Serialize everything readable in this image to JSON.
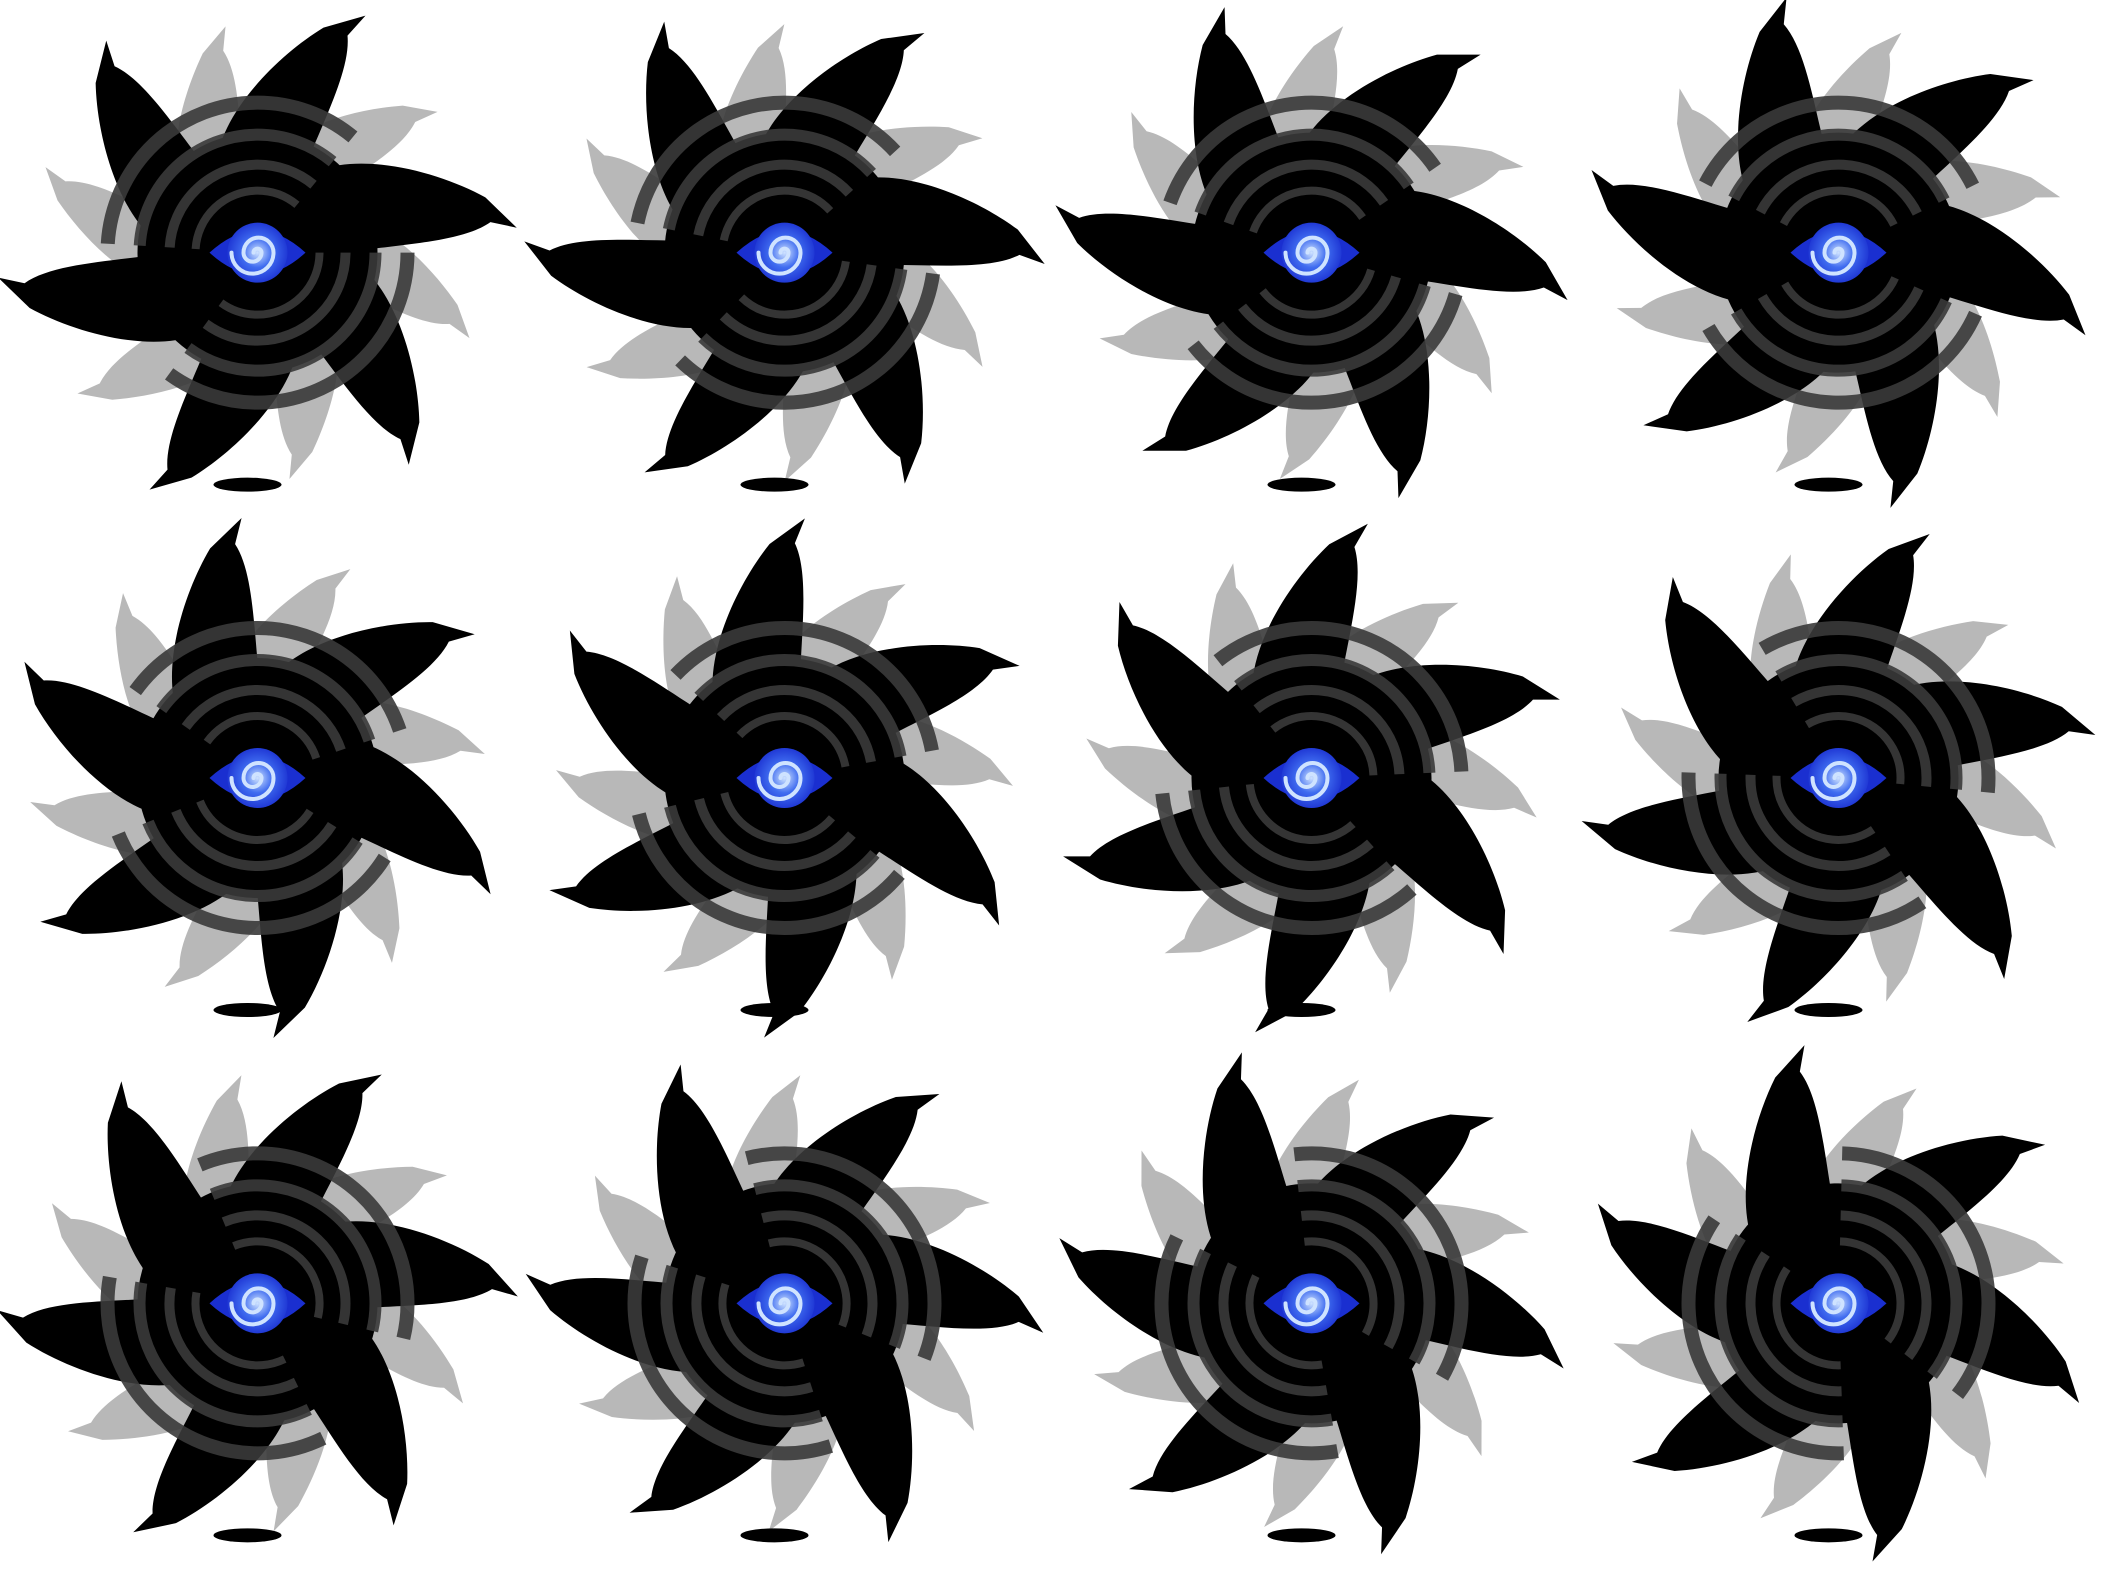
{
  "sprite_sheet": {
    "background": "#ffffff",
    "rows": 3,
    "columns": 4,
    "frame_count": 12,
    "sprite": {
      "name": "vortex-eye",
      "arm_count": 6,
      "colors": {
        "dark_arms": "#000000",
        "light_arms": "#b8b8b8",
        "spiral_rings": "#3a3a3a",
        "eye_outer": "#1a2fd0",
        "eye_mid": "#3f6cf0",
        "eye_highlight": "#cfe3ff"
      }
    },
    "frames": [
      {
        "index": 1,
        "rotation_deg": 0
      },
      {
        "index": 2,
        "rotation_deg": 8
      },
      {
        "index": 3,
        "rotation_deg": 16
      },
      {
        "index": 4,
        "rotation_deg": 24
      },
      {
        "index": 5,
        "rotation_deg": 32
      },
      {
        "index": 6,
        "rotation_deg": 40
      },
      {
        "index": 7,
        "rotation_deg": 48
      },
      {
        "index": 8,
        "rotation_deg": 56
      },
      {
        "index": 9,
        "rotation_deg": 64
      },
      {
        "index": 10,
        "rotation_deg": 72
      },
      {
        "index": 11,
        "rotation_deg": 80
      },
      {
        "index": 12,
        "rotation_deg": 88
      }
    ]
  }
}
